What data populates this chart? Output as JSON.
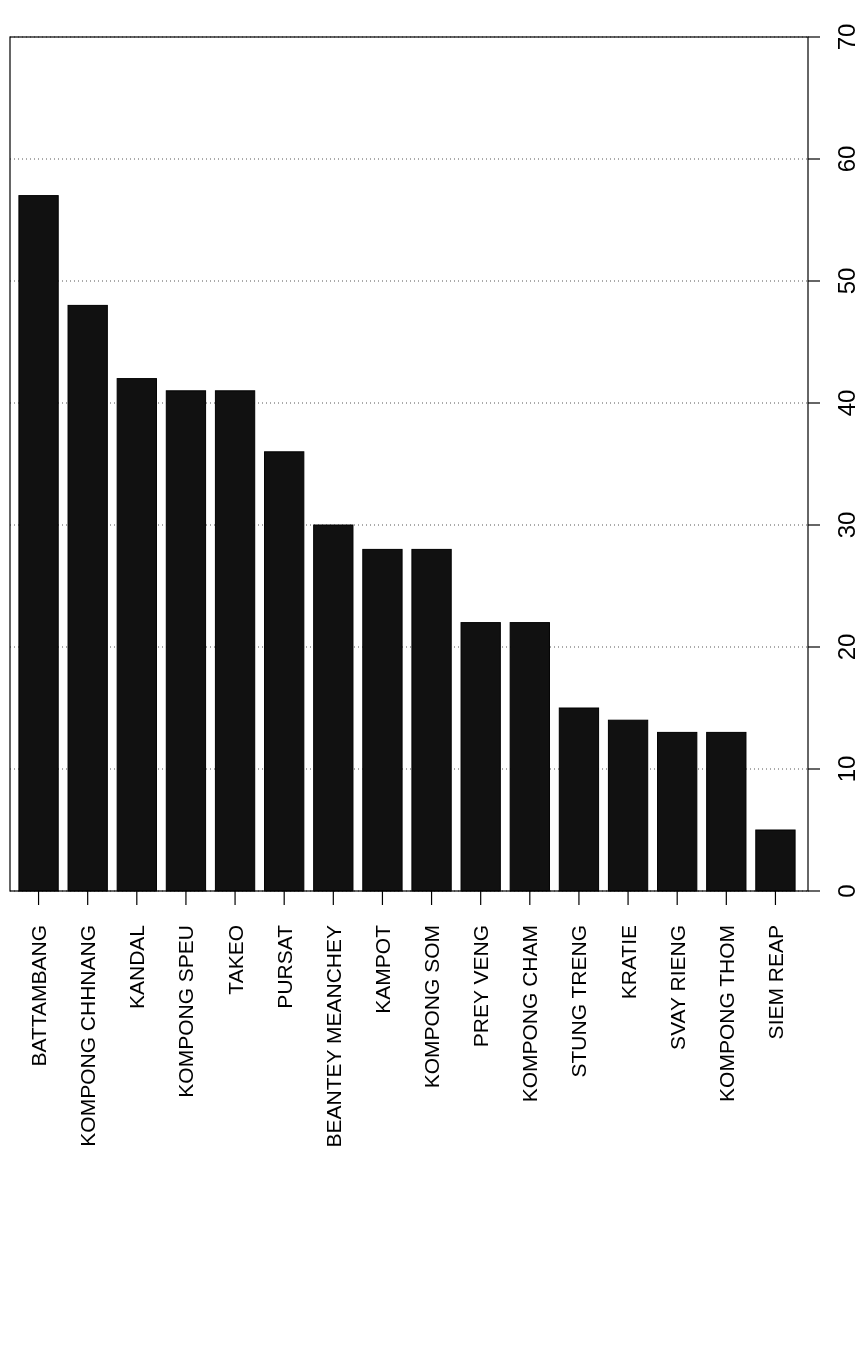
{
  "chart_data": {
    "type": "bar",
    "categories": [
      "BATTAMBANG",
      "KOMPONG CHHNANG",
      "KANDAL",
      "KOMPONG SPEU",
      "TAKEO",
      "PURSAT",
      "BEANTEY MEANCHEY",
      "KAMPOT",
      "KOMPONG SOM",
      "PREY VENG",
      "KOMPONG CHAM",
      "STUNG TRENG",
      "KRATIE",
      "SVAY RIENG",
      "KOMPONG THOM",
      "SIEM REAP"
    ],
    "values": [
      57,
      48,
      42,
      41,
      41,
      36,
      30,
      28,
      28,
      22,
      22,
      15,
      14,
      13,
      13,
      5
    ],
    "color": "#111111",
    "ylim": [
      0,
      70
    ],
    "yticks": [
      0,
      10,
      20,
      30,
      40,
      50,
      60,
      70
    ],
    "grid": "y"
  }
}
